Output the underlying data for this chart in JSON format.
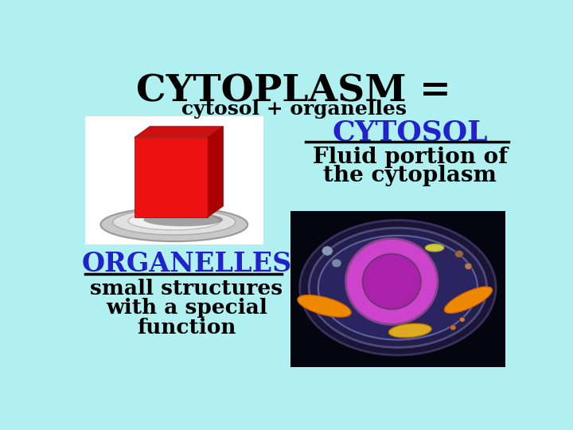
{
  "bg_color": "#b0f0f0",
  "title": "CYTOPLASM =",
  "subtitle": "cytosol + organelles",
  "cytosol_label": "CYTOSOL",
  "cytosol_desc_line1": "Fluid portion of",
  "cytosol_desc_line2": "the cytoplasm",
  "organelles_label": "ORGANELLES",
  "organelles_desc_line1": "small structures",
  "organelles_desc_line2": "with a special",
  "organelles_desc_line3": "function",
  "label_color": "#2222cc",
  "desc_color": "#000000",
  "title_color": "#000000",
  "subtitle_color": "#000000",
  "title_fontsize": 34,
  "subtitle_fontsize": 18,
  "cytosol_label_fontsize": 26,
  "cytosol_desc_fontsize": 20,
  "organelles_label_fontsize": 24,
  "organelles_desc_fontsize": 19
}
